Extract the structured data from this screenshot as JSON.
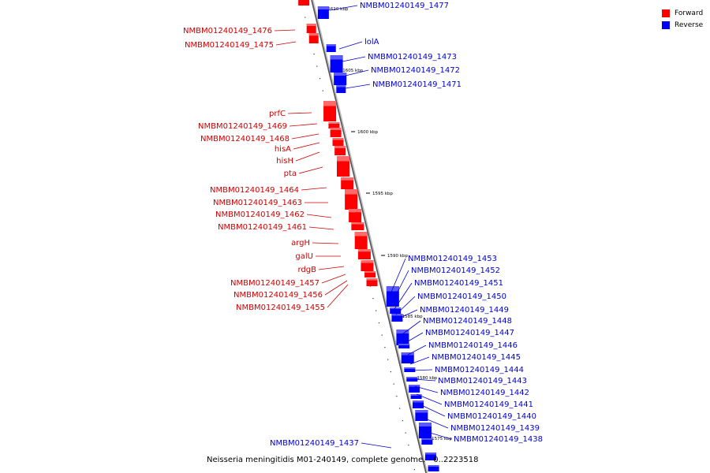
{
  "map": {
    "caption": "Neisseria meningitidis M01-240149, complete genome. - 0..2223518",
    "ticks": [
      "1610 kbp",
      "1605 kbp",
      "1600 kbp",
      "1595 kbp",
      "1590 kbp",
      "1585 kbp",
      "1580 kbp",
      "1575 kbp"
    ],
    "legend": [
      {
        "label": "Forward",
        "color": "#ff0000"
      },
      {
        "label": "Reverse",
        "color": "#0000ff"
      }
    ],
    "forward_genes": [
      "NMBM01240149_1476",
      "NMBM01240149_1475",
      "prfC",
      "NMBM01240149_1469",
      "NMBM01240149_1468",
      "hisA",
      "hisH",
      "pta",
      "NMBM01240149_1464",
      "NMBM01240149_1463",
      "NMBM01240149_1462",
      "NMBM01240149_1461",
      "argH",
      "galU",
      "rdgB",
      "NMBM01240149_1457",
      "NMBM01240149_1456",
      "NMBM01240149_1455"
    ],
    "reverse_genes": [
      "NMBM01240149_1477",
      "lolA",
      "NMBM01240149_1473",
      "NMBM01240149_1472",
      "NMBM01240149_1471",
      "NMBM01240149_1453",
      "NMBM01240149_1452",
      "NMBM01240149_1451",
      "NMBM01240149_1450",
      "NMBM01240149_1449",
      "NMBM01240149_1448",
      "NMBM01240149_1447",
      "NMBM01240149_1446",
      "NMBM01240149_1445",
      "NMBM01240149_1444",
      "NMBM01240149_1443",
      "NMBM01240149_1442",
      "NMBM01240149_1441",
      "NMBM01240149_1440",
      "NMBM01240149_1439",
      "NMBM01240149_1438",
      "NMBM01240149_1437"
    ]
  }
}
